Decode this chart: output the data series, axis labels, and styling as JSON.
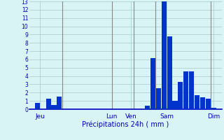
{
  "xlabel": "Précipitations 24h ( mm )",
  "ylim": [
    0,
    13
  ],
  "bar_color_main": "#0033cc",
  "background_color": "#d8f4f4",
  "grid_color": "#a8c8c8",
  "text_color": "#0000bb",
  "bar_values": [
    0,
    0.8,
    0,
    1.3,
    0.5,
    1.5,
    0,
    0,
    0,
    0,
    0,
    0,
    0,
    0,
    0,
    0,
    0,
    0,
    0,
    0,
    0,
    0.4,
    6.2,
    2.5,
    13.0,
    8.8,
    1.0,
    3.3,
    4.6,
    4.6,
    1.7,
    1.4,
    1.3,
    0.2,
    0
  ],
  "n_bars": 35,
  "day_tick_positions": [
    1.5,
    14.5,
    18.0,
    24.5,
    33.0
  ],
  "day_labels": [
    "Jeu",
    "Lun",
    "Ven",
    "Sam",
    "Dim"
  ],
  "day_line_x": [
    5.5,
    14.5,
    18.5,
    22.5,
    32.5
  ],
  "yticks": [
    0,
    1,
    2,
    3,
    4,
    5,
    6,
    7,
    8,
    9,
    10,
    11,
    12,
    13
  ]
}
